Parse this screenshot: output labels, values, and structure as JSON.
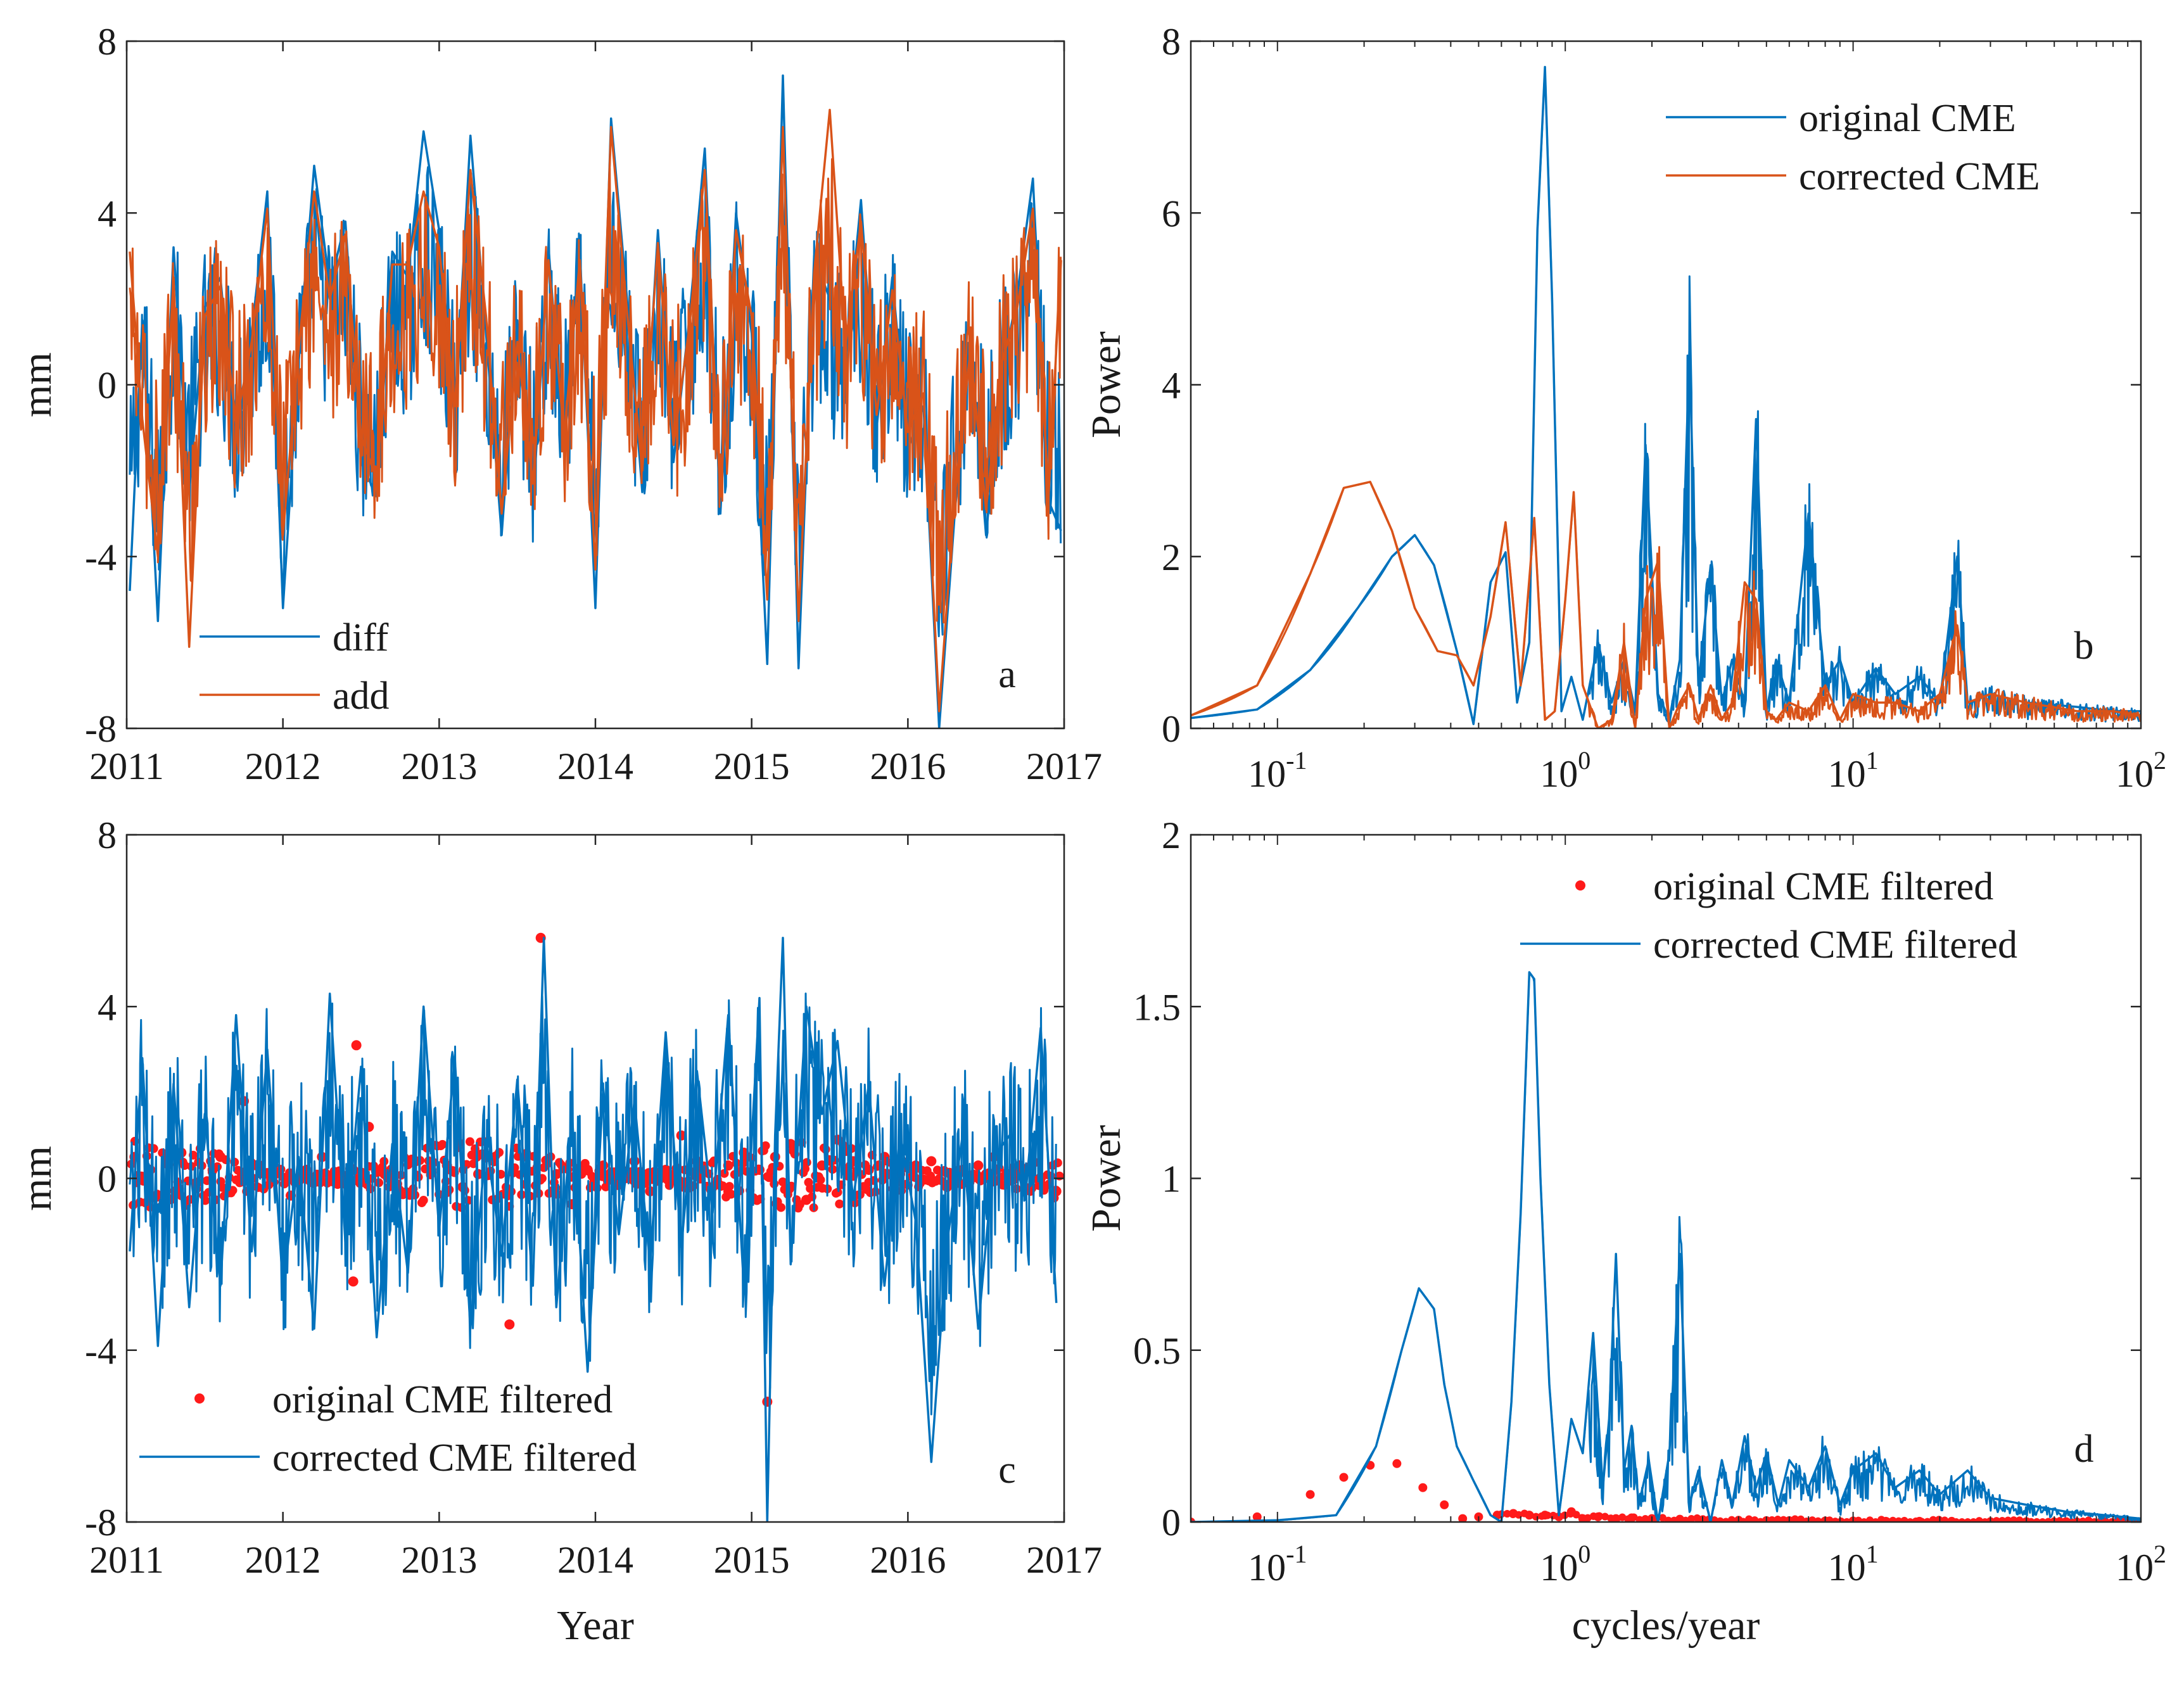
{
  "colors": {
    "blue": "#0072BD",
    "orange": "#D95319",
    "red": "#FF1A1A",
    "axis": "#262626"
  },
  "chart_data": [
    {
      "type": "line",
      "panel_label": "a",
      "ylabel": "mm",
      "xlabel": "",
      "xlim": [
        2011,
        2017
      ],
      "ylim": [
        -8,
        8
      ],
      "xticks": [
        "2011",
        "2012",
        "2013",
        "2014",
        "2015",
        "2016",
        "2017"
      ],
      "yticks": [
        "-8",
        "-4",
        "0",
        "4",
        "8"
      ],
      "legend_position": "bottom-left",
      "series": [
        {
          "name": "diff",
          "color": "#0072BD",
          "x": [
            2011.02,
            2011.1,
            2011.2,
            2011.3,
            2011.4,
            2011.5,
            2011.6,
            2011.7,
            2011.8,
            2011.9,
            2012.0,
            2012.1,
            2012.2,
            2012.3,
            2012.4,
            2012.5,
            2012.6,
            2012.7,
            2012.8,
            2012.9,
            2013.0,
            2013.1,
            2013.2,
            2013.3,
            2013.4,
            2013.5,
            2013.6,
            2013.7,
            2013.8,
            2013.9,
            2014.0,
            2014.1,
            2014.2,
            2014.3,
            2014.4,
            2014.5,
            2014.6,
            2014.7,
            2014.8,
            2014.9,
            2015.0,
            2015.1,
            2015.2,
            2015.3,
            2015.4,
            2015.5,
            2015.6,
            2015.7,
            2015.8,
            2015.9,
            2016.0,
            2016.1,
            2016.2,
            2016.3,
            2016.4,
            2016.5,
            2016.6,
            2016.7,
            2016.8,
            2016.9,
            2016.98
          ],
          "values": [
            -4.8,
            1.5,
            -5.5,
            3.2,
            -2.5,
            1.8,
            2.5,
            -1.5,
            1.2,
            4.5,
            -5.2,
            0.5,
            5.1,
            2.3,
            3.8,
            -1.8,
            -2.6,
            3.1,
            2.5,
            5.9,
            3.6,
            -0.8,
            5.8,
            1.2,
            -3.5,
            1.5,
            -2.8,
            3.2,
            -1.6,
            3.2,
            -5.2,
            6.2,
            2.1,
            -2.5,
            3.6,
            -1.8,
            1.5,
            5.5,
            -3.0,
            4.0,
            1.2,
            -6.5,
            7.2,
            -6.6,
            3.0,
            2.0,
            0.5,
            4.3,
            -1.0,
            2.5,
            -1.5,
            -0.5,
            -8.0,
            -3.0,
            1.0,
            -3.5,
            0.2,
            2.1,
            4.8,
            -2.7,
            -3.4
          ]
        },
        {
          "name": "add",
          "color": "#D95319",
          "x": [
            2011.02,
            2011.1,
            2011.2,
            2011.3,
            2011.4,
            2011.5,
            2011.6,
            2011.7,
            2011.8,
            2011.9,
            2012.0,
            2012.1,
            2012.2,
            2012.3,
            2012.4,
            2012.5,
            2012.6,
            2012.7,
            2012.8,
            2012.9,
            2013.0,
            2013.1,
            2013.2,
            2013.3,
            2013.4,
            2013.5,
            2013.6,
            2013.7,
            2013.8,
            2013.9,
            2014.0,
            2014.1,
            2014.2,
            2014.3,
            2014.4,
            2014.5,
            2014.6,
            2014.7,
            2014.8,
            2014.9,
            2015.0,
            2015.1,
            2015.2,
            2015.3,
            2015.4,
            2015.5,
            2015.6,
            2015.7,
            2015.8,
            2015.9,
            2016.0,
            2016.1,
            2016.2,
            2016.3,
            2016.4,
            2016.5,
            2016.6,
            2016.7,
            2016.8,
            2016.9,
            2016.98
          ],
          "values": [
            3.1,
            -0.8,
            -4.0,
            2.5,
            -6.1,
            1.6,
            2.3,
            -0.9,
            1.0,
            4.1,
            -3.5,
            0.8,
            4.5,
            2.0,
            3.5,
            -1.2,
            -2.2,
            2.8,
            2.8,
            4.5,
            3.2,
            -0.5,
            5.0,
            1.6,
            -3.0,
            1.0,
            -2.3,
            2.9,
            -1.2,
            2.9,
            -4.3,
            6.0,
            1.8,
            -2.0,
            3.3,
            -1.4,
            1.3,
            5.0,
            -2.6,
            3.6,
            1.6,
            -5.0,
            6.0,
            -5.5,
            2.6,
            6.4,
            0.9,
            3.8,
            -0.7,
            2.2,
            -1.1,
            -0.2,
            -7.6,
            -2.6,
            0.8,
            -2.9,
            0.5,
            1.8,
            4.1,
            -2.6,
            2.9
          ]
        }
      ]
    },
    {
      "type": "line",
      "panel_label": "b",
      "ylabel": "Power",
      "xlabel": "",
      "xscale": "log",
      "xlim": [
        0.05,
        100
      ],
      "ylim": [
        0,
        8
      ],
      "xtick_base": "10",
      "xtick_exponents": [
        "-1",
        "0",
        "1",
        "2"
      ],
      "yticks": [
        "0",
        "2",
        "4",
        "6",
        "8"
      ],
      "legend_position": "top-right",
      "series": [
        {
          "name": "original CME",
          "color": "#0072BD",
          "x": [
            0.05,
            0.085,
            0.13,
            0.19,
            0.25,
            0.3,
            0.35,
            0.42,
            0.48,
            0.55,
            0.62,
            0.68,
            0.75,
            0.8,
            0.85,
            0.9,
            0.97,
            1.05,
            1.15,
            1.3,
            1.45,
            1.6,
            1.75,
            1.9,
            2.1,
            2.3,
            2.5,
            2.7,
            2.9,
            3.2,
            3.5,
            3.8,
            4.2,
            4.6,
            5.0,
            5.4,
            6.0,
            7.0,
            8.0,
            9.0,
            10.0,
            12.0,
            14.0,
            17.0,
            20.0,
            23.0,
            25.0,
            30.0,
            40.0,
            60.0,
            80.0,
            100.0
          ],
          "values": [
            0.12,
            0.22,
            0.68,
            1.4,
            2.0,
            2.25,
            1.9,
            0.9,
            0.05,
            1.7,
            2.05,
            0.3,
            1.0,
            5.8,
            7.7,
            5.0,
            0.2,
            0.6,
            0.1,
            1.0,
            0.3,
            0.8,
            0.2,
            3.3,
            0.4,
            0.1,
            0.8,
            4.4,
            0.5,
            1.9,
            0.3,
            0.8,
            0.3,
            3.6,
            0.2,
            0.8,
            0.3,
            2.5,
            0.5,
            0.8,
            0.3,
            0.7,
            0.4,
            0.6,
            0.3,
            2.0,
            0.3,
            0.4,
            0.3,
            0.25,
            0.2,
            0.2
          ]
        },
        {
          "name": "corrected CME",
          "color": "#D95319",
          "x": [
            0.05,
            0.085,
            0.13,
            0.17,
            0.21,
            0.25,
            0.3,
            0.36,
            0.42,
            0.48,
            0.55,
            0.62,
            0.7,
            0.78,
            0.85,
            0.92,
            1.0,
            1.07,
            1.15,
            1.3,
            1.45,
            1.6,
            1.75,
            1.9,
            2.1,
            2.3,
            2.5,
            2.7,
            2.9,
            3.2,
            3.5,
            3.8,
            4.2,
            4.6,
            5.0,
            5.4,
            6.0,
            7.0,
            8.0,
            9.0,
            10.0,
            12.0,
            14.0,
            17.0,
            20.0,
            23.0,
            25.0,
            30.0,
            40.0,
            60.0,
            80.0,
            100.0
          ],
          "values": [
            0.15,
            0.5,
            1.8,
            2.8,
            2.87,
            2.3,
            1.4,
            0.9,
            0.85,
            0.5,
            1.3,
            2.4,
            0.5,
            2.45,
            0.1,
            0.2,
            1.5,
            2.75,
            0.5,
            0.0,
            0.1,
            1.0,
            0.0,
            1.5,
            1.95,
            0.0,
            0.3,
            0.5,
            0.1,
            0.5,
            0.1,
            0.3,
            1.7,
            1.5,
            0.2,
            0.1,
            0.3,
            0.2,
            0.5,
            0.1,
            0.4,
            0.3,
            0.3,
            0.2,
            0.4,
            1.2,
            0.3,
            0.4,
            0.3,
            0.2,
            0.2,
            0.15
          ]
        }
      ]
    },
    {
      "type": "line",
      "panel_label": "c",
      "ylabel": "mm",
      "xlabel": "Year",
      "xlim": [
        2011,
        2017
      ],
      "ylim": [
        -8,
        8
      ],
      "xticks": [
        "2011",
        "2012",
        "2013",
        "2014",
        "2015",
        "2016",
        "2017"
      ],
      "yticks": [
        "-8",
        "-4",
        "0",
        "4",
        "8"
      ],
      "legend_position": "bottom-left",
      "series": [
        {
          "name": "original CME filtered",
          "color": "#FF1A1A",
          "marker": "dot",
          "x": [
            2011.05,
            2011.15,
            2011.25,
            2011.35,
            2011.45,
            2011.55,
            2011.6,
            2011.75,
            2011.85,
            2011.95,
            2012.05,
            2012.15,
            2012.25,
            2012.35,
            2012.42,
            2012.45,
            2012.47,
            2012.55,
            2012.65,
            2012.75,
            2012.85,
            2012.95,
            2013.05,
            2013.15,
            2013.25,
            2013.35,
            2013.45,
            2013.55,
            2013.65,
            2013.75,
            2013.85,
            2013.95,
            2014.05,
            2014.15,
            2014.25,
            2014.35,
            2014.45,
            2014.55,
            2014.65,
            2014.75,
            2014.85,
            2014.95,
            2015.05,
            2015.1,
            2015.15,
            2015.25,
            2015.35,
            2015.45,
            2015.55,
            2015.65,
            2015.75,
            2015.85,
            2015.95,
            2016.05,
            2016.15,
            2016.25,
            2016.35,
            2016.45,
            2016.55,
            2016.65,
            2016.75,
            2016.85,
            2016.95
          ],
          "values": [
            0.5,
            0.2,
            -0.3,
            0.6,
            -0.1,
            0.2,
            0.5,
            1.8,
            0.3,
            0.1,
            -0.4,
            0.2,
            0.5,
            0.1,
            -0.2,
            -2.4,
            3.1,
            1.2,
            0.1,
            -0.3,
            0.4,
            0.2,
            0.3,
            -0.2,
            0.1,
            0.4,
            -3.4,
            0.2,
            5.6,
            0.1,
            -0.6,
            0.2,
            0.3,
            -0.1,
            0.4,
            -0.3,
            0.2,
            1.0,
            0.4,
            -0.2,
            0.3,
            0.6,
            0.2,
            -5.2,
            0.5,
            0.8,
            -0.5,
            0.3,
            0.9,
            0.4,
            0.2,
            0.5,
            0.1,
            0.3,
            0.4,
            -0.2,
            0.2,
            0.3,
            0.5,
            0.1,
            0.2,
            0.0,
            -0.3
          ]
        },
        {
          "name": "corrected CME filtered",
          "color": "#0072BD",
          "x": [
            2011.02,
            2011.1,
            2011.2,
            2011.3,
            2011.4,
            2011.5,
            2011.6,
            2011.7,
            2011.8,
            2011.9,
            2012.0,
            2012.1,
            2012.2,
            2012.3,
            2012.4,
            2012.5,
            2012.6,
            2012.7,
            2012.8,
            2012.9,
            2013.0,
            2013.1,
            2013.2,
            2013.3,
            2013.4,
            2013.5,
            2013.6,
            2013.67,
            2013.75,
            2013.85,
            2013.95,
            2014.05,
            2014.15,
            2014.25,
            2014.35,
            2014.45,
            2014.55,
            2014.65,
            2014.75,
            2014.85,
            2014.95,
            2015.05,
            2015.1,
            2015.15,
            2015.2,
            2015.25,
            2015.35,
            2015.45,
            2015.55,
            2015.65,
            2015.75,
            2015.85,
            2015.95,
            2016.05,
            2016.15,
            2016.25,
            2016.35,
            2016.45,
            2016.55,
            2016.65,
            2016.75,
            2016.85,
            2016.95
          ],
          "values": [
            -1.7,
            2.8,
            -3.9,
            2.2,
            -3.0,
            1.5,
            -2.5,
            3.8,
            -1.7,
            3.0,
            -2.5,
            0.5,
            -3.5,
            4.3,
            -1.5,
            2.6,
            -3.7,
            0.8,
            -2.2,
            4.0,
            -1.2,
            2.8,
            -3.5,
            0.9,
            -1.8,
            2.3,
            -2.5,
            5.6,
            -3.0,
            1.5,
            -4.5,
            2.1,
            -1.3,
            1.8,
            -2.0,
            3.4,
            -1.6,
            2.5,
            -0.8,
            3.8,
            -2.5,
            4.2,
            -8.0,
            1.0,
            5.6,
            -2.0,
            4.0,
            1.5,
            3.2,
            -0.5,
            2.2,
            -2.5,
            1.0,
            -1.0,
            -6.6,
            -1.5,
            1.0,
            -3.5,
            0.5,
            1.0,
            -0.5,
            3.5,
            -2.9
          ]
        }
      ]
    },
    {
      "type": "line",
      "panel_label": "d",
      "ylabel": "Power",
      "xlabel": "cycles/year",
      "xscale": "log",
      "xlim": [
        0.05,
        100
      ],
      "ylim": [
        0,
        2
      ],
      "xtick_base": "10",
      "xtick_exponents": [
        "-1",
        "0",
        "1",
        "2"
      ],
      "yticks": [
        "0",
        "0.5",
        "1",
        "1.5",
        "2"
      ],
      "legend_position": "top-right",
      "series": [
        {
          "name": "original CME filtered",
          "color": "#FF1A1A",
          "marker": "dot",
          "x": [
            0.05,
            0.085,
            0.13,
            0.17,
            0.21,
            0.26,
            0.32,
            0.38,
            0.44,
            0.5,
            0.58,
            0.66,
            0.75,
            0.85,
            0.95,
            1.05,
            1.15,
            1.3,
            1.5,
            1.7,
            2.0,
            2.5,
            3.0,
            4.0,
            5.0,
            6.0,
            8.0,
            10.0,
            13.0,
            17.0,
            22.0,
            30.0,
            40.0,
            55.0,
            75.0,
            100.0
          ],
          "values": [
            0.0,
            0.015,
            0.08,
            0.13,
            0.165,
            0.17,
            0.1,
            0.05,
            0.01,
            0.015,
            0.02,
            0.025,
            0.02,
            0.02,
            0.015,
            0.03,
            0.01,
            0.015,
            0.01,
            0.012,
            0.01,
            0.008,
            0.006,
            0.005,
            0.004,
            0.004,
            0.003,
            0.003,
            0.002,
            0.002,
            0.002,
            0.001,
            0.001,
            0.001,
            0.001,
            0.001
          ]
        },
        {
          "name": "corrected CME filtered",
          "color": "#0072BD",
          "x": [
            0.05,
            0.1,
            0.16,
            0.22,
            0.27,
            0.31,
            0.35,
            0.38,
            0.42,
            0.48,
            0.55,
            0.6,
            0.65,
            0.7,
            0.75,
            0.78,
            0.82,
            0.88,
            0.95,
            1.05,
            1.15,
            1.25,
            1.35,
            1.42,
            1.5,
            1.6,
            1.7,
            1.8,
            1.95,
            2.1,
            2.3,
            2.5,
            2.7,
            2.9,
            3.2,
            3.5,
            3.8,
            4.2,
            4.6,
            5.0,
            5.5,
            6.0,
            7.0,
            8.0,
            9.0,
            10.0,
            12.0,
            14.0,
            17.0,
            20.0,
            25.0,
            30.0,
            40.0,
            55.0,
            75.0,
            100.0
          ],
          "values": [
            0.0,
            0.005,
            0.02,
            0.22,
            0.5,
            0.68,
            0.62,
            0.4,
            0.22,
            0.12,
            0.02,
            0.0,
            0.35,
            0.9,
            1.6,
            1.58,
            1.0,
            0.4,
            0.02,
            0.3,
            0.2,
            0.55,
            0.1,
            0.3,
            0.78,
            0.15,
            0.28,
            0.05,
            0.18,
            0.0,
            0.2,
            0.78,
            0.05,
            0.15,
            0.0,
            0.18,
            0.05,
            0.25,
            0.1,
            0.2,
            0.05,
            0.18,
            0.1,
            0.22,
            0.05,
            0.15,
            0.2,
            0.1,
            0.15,
            0.08,
            0.15,
            0.07,
            0.05,
            0.03,
            0.02,
            0.01
          ]
        }
      ]
    }
  ]
}
